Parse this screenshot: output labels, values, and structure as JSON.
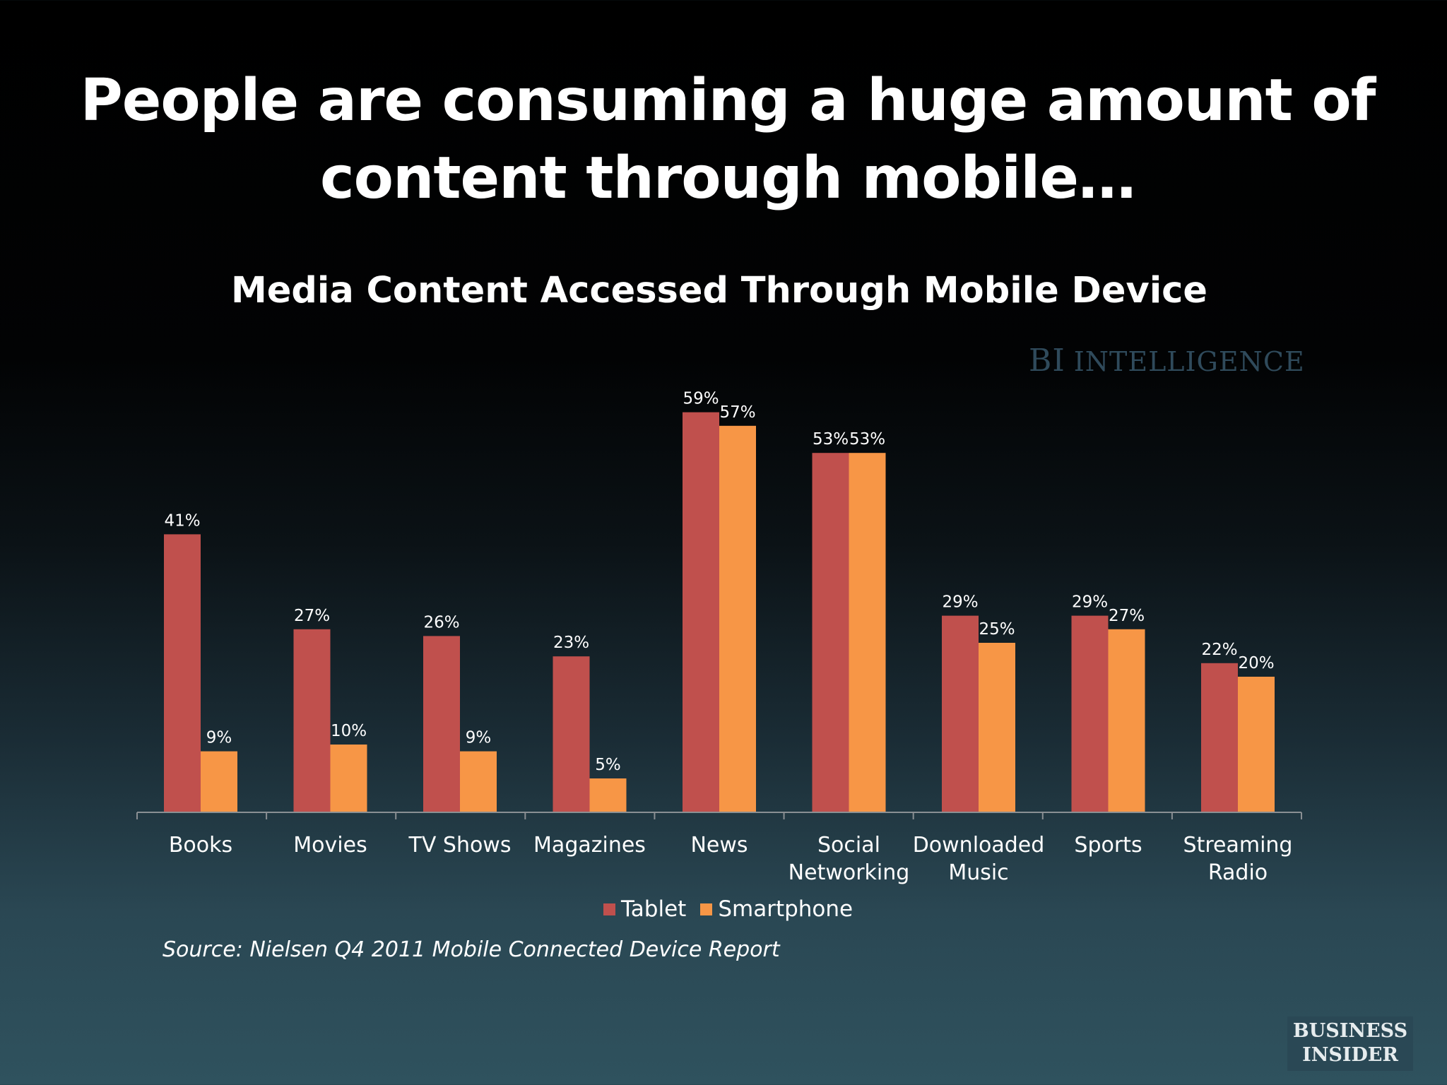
{
  "slide": {
    "title_line1": "People are consuming a huge amount of",
    "title_line2": "content through mobile…",
    "watermark": "BI INTELLIGENCE",
    "watermark_part1": "BI",
    "watermark_part2": "INTELLIGENCE",
    "source": "Source: Nielsen Q4 2011 Mobile Connected Device Report",
    "brand_line1": "BUSINESS",
    "brand_line2": "INSIDER"
  },
  "chart_data": {
    "type": "bar",
    "title": "Media Content Accessed Through Mobile Device",
    "categories": [
      "Books",
      "Movies",
      "TV Shows",
      "Magazines",
      "News",
      "Social Networking",
      "Downloaded Music",
      "Sports",
      "Streaming Radio"
    ],
    "category_label_lines": [
      [
        "Books"
      ],
      [
        "Movies"
      ],
      [
        "TV Shows"
      ],
      [
        "Magazines"
      ],
      [
        "News"
      ],
      [
        "Social",
        "Networking"
      ],
      [
        "Downloaded",
        "Music"
      ],
      [
        "Sports"
      ],
      [
        "Streaming",
        "Radio"
      ]
    ],
    "series": [
      {
        "name": "Tablet",
        "color": "#c0504d",
        "values": [
          41,
          27,
          26,
          23,
          59,
          53,
          29,
          29,
          22
        ]
      },
      {
        "name": "Smartphone",
        "color": "#f79646",
        "values": [
          9,
          10,
          9,
          5,
          57,
          53,
          25,
          27,
          20
        ]
      }
    ],
    "value_format": "percent",
    "ylim": [
      0,
      60
    ],
    "show_data_labels": true,
    "grid": false,
    "show_y_axis": false,
    "legend_position": "bottom"
  }
}
